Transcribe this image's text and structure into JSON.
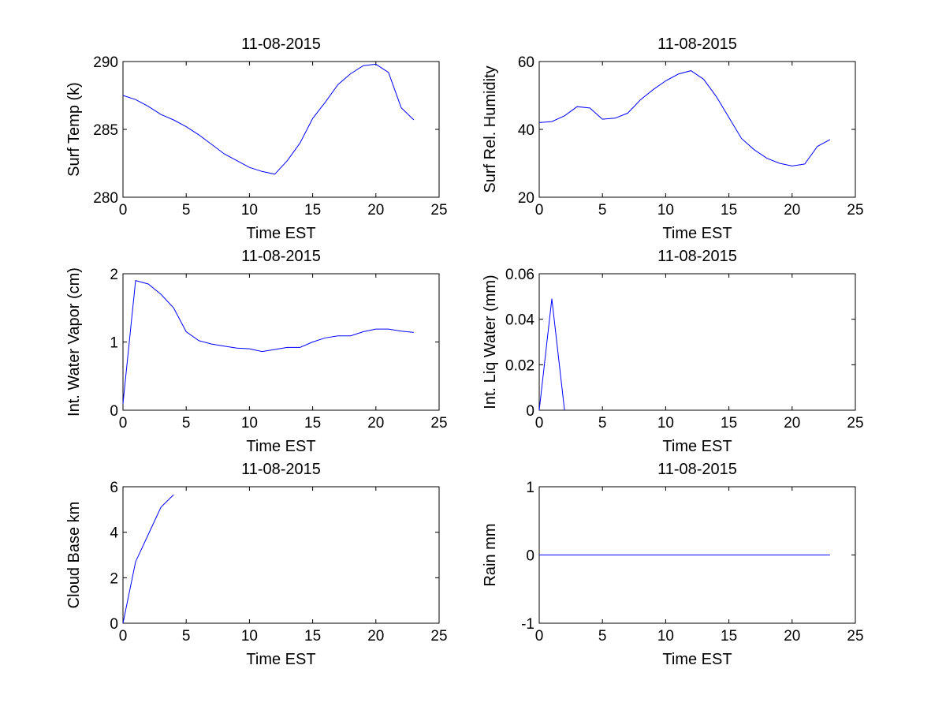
{
  "figure": {
    "background": "#ffffff",
    "line_color": "#0000ff"
  },
  "chart_data": [
    {
      "type": "line",
      "title": "11-08-2015",
      "xlabel": "Time EST",
      "ylabel": "Surf Temp (k)",
      "xlim": [
        0,
        25
      ],
      "ylim": [
        280,
        290
      ],
      "xticks": [
        0,
        5,
        10,
        15,
        20,
        25
      ],
      "yticks": [
        280,
        285,
        290
      ],
      "x": [
        0,
        1,
        2,
        3,
        4,
        5,
        6,
        7,
        8,
        9,
        10,
        11,
        12,
        13,
        14,
        15,
        16,
        17,
        18,
        19,
        20,
        21,
        22,
        23
      ],
      "y": [
        287.5,
        287.2,
        286.7,
        286.1,
        285.7,
        285.2,
        284.6,
        283.9,
        283.2,
        282.7,
        282.2,
        281.9,
        281.7,
        282.7,
        284.0,
        285.8,
        287.0,
        288.3,
        289.1,
        289.7,
        289.8,
        289.2,
        286.6,
        285.7
      ]
    },
    {
      "type": "line",
      "title": "11-08-2015",
      "xlabel": "Time EST",
      "ylabel": "Surf Rel. Humidity",
      "xlim": [
        0,
        25
      ],
      "ylim": [
        20,
        60
      ],
      "xticks": [
        0,
        5,
        10,
        15,
        20,
        25
      ],
      "yticks": [
        20,
        40,
        60
      ],
      "x": [
        0,
        1,
        2,
        3,
        4,
        5,
        6,
        7,
        8,
        9,
        10,
        11,
        12,
        13,
        14,
        15,
        16,
        17,
        18,
        19,
        20,
        21,
        22,
        23
      ],
      "y": [
        42.0,
        42.3,
        44.0,
        46.7,
        46.3,
        43.0,
        43.3,
        44.8,
        48.7,
        51.7,
        54.3,
        56.3,
        57.3,
        54.8,
        49.7,
        43.5,
        37.3,
        34.0,
        31.5,
        30.0,
        29.2,
        29.8,
        35.0,
        37.0
      ]
    },
    {
      "type": "line",
      "title": "11-08-2015",
      "xlabel": "Time EST",
      "ylabel": "Int. Water Vapor (cm)",
      "xlim": [
        0,
        25
      ],
      "ylim": [
        0,
        2
      ],
      "xticks": [
        0,
        5,
        10,
        15,
        20,
        25
      ],
      "yticks": [
        0,
        1,
        2
      ],
      "x": [
        0,
        1,
        2,
        3,
        4,
        5,
        6,
        7,
        8,
        9,
        10,
        11,
        12,
        13,
        14,
        15,
        16,
        17,
        18,
        19,
        20,
        21,
        22,
        23
      ],
      "y": [
        0.1,
        1.9,
        1.85,
        1.7,
        1.5,
        1.15,
        1.02,
        0.97,
        0.94,
        0.91,
        0.9,
        0.86,
        0.89,
        0.92,
        0.92,
        1.0,
        1.06,
        1.09,
        1.09,
        1.15,
        1.19,
        1.19,
        1.16,
        1.14
      ]
    },
    {
      "type": "line",
      "title": "11-08-2015",
      "xlabel": "Time EST",
      "ylabel": "Int. Liq Water (mm)",
      "xlim": [
        0,
        25
      ],
      "ylim": [
        0,
        0.06
      ],
      "xticks": [
        0,
        5,
        10,
        15,
        20,
        25
      ],
      "yticks": [
        0,
        0.02,
        0.04,
        0.06
      ],
      "x": [
        0,
        1,
        2
      ],
      "y": [
        0,
        0.049,
        0
      ]
    },
    {
      "type": "line",
      "title": "11-08-2015",
      "xlabel": "Time EST",
      "ylabel": "Cloud Base km",
      "xlim": [
        0,
        25
      ],
      "ylim": [
        0,
        6
      ],
      "xticks": [
        0,
        5,
        10,
        15,
        20,
        25
      ],
      "yticks": [
        0,
        2,
        4,
        6
      ],
      "x": [
        0,
        1,
        2,
        3,
        4
      ],
      "y": [
        0,
        2.7,
        3.9,
        5.1,
        5.65
      ]
    },
    {
      "type": "line",
      "title": "11-08-2015",
      "xlabel": "Time EST",
      "ylabel": "Rain mm",
      "xlim": [
        0,
        25
      ],
      "ylim": [
        -1,
        1
      ],
      "xticks": [
        0,
        5,
        10,
        15,
        20,
        25
      ],
      "yticks": [
        -1,
        0,
        1
      ],
      "x": [
        0,
        1,
        2,
        3,
        4,
        5,
        6,
        7,
        8,
        9,
        10,
        11,
        12,
        13,
        14,
        15,
        16,
        17,
        18,
        19,
        20,
        21,
        22,
        23
      ],
      "y": [
        0,
        0,
        0,
        0,
        0,
        0,
        0,
        0,
        0,
        0,
        0,
        0,
        0,
        0,
        0,
        0,
        0,
        0,
        0,
        0,
        0,
        0,
        0,
        0
      ]
    }
  ]
}
